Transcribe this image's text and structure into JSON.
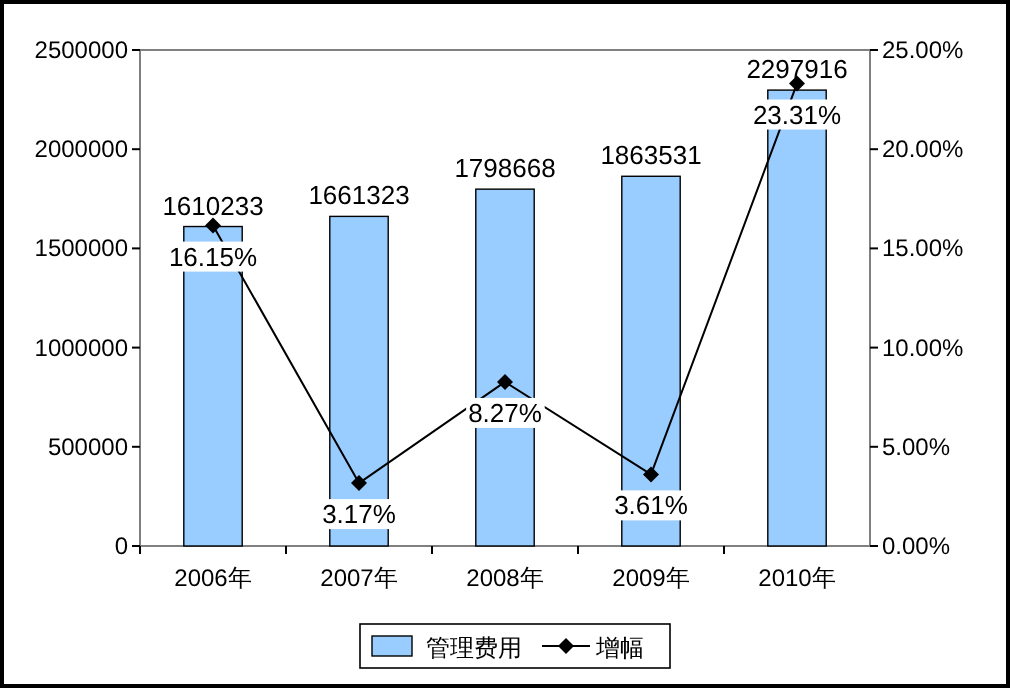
{
  "chart_data": {
    "type": "bar",
    "categories": [
      "2006年",
      "2007年",
      "2008年",
      "2009年",
      "2010年"
    ],
    "series": [
      {
        "name": "管理费用",
        "color": "#99ccff",
        "values": [
          1610233,
          1661323,
          1798668,
          1863531,
          2297916
        ],
        "data_labels": true
      },
      {
        "name": "增幅",
        "type": "line",
        "axis": "y2",
        "color": "#000000",
        "marker": "diamond",
        "values": [
          16.15,
          3.17,
          8.27,
          3.61,
          23.31
        ],
        "value_labels": [
          "16.15%",
          "3.17%",
          "8.27%",
          "3.61%",
          "23.31%"
        ]
      }
    ],
    "ylim": [
      0,
      2500000
    ],
    "yticks": [
      0,
      500000,
      1000000,
      1500000,
      2000000,
      2500000
    ],
    "y2lim": [
      0,
      25
    ],
    "y2ticks": [
      {
        "value": 0,
        "label": "0.00%"
      },
      {
        "value": 5,
        "label": "5.00%"
      },
      {
        "value": 10,
        "label": "10.00%"
      },
      {
        "value": 15,
        "label": "15.00%"
      },
      {
        "value": 20,
        "label": "20.00%"
      },
      {
        "value": 25,
        "label": "25.00%"
      }
    ],
    "legend": "bottom",
    "grid": false
  }
}
